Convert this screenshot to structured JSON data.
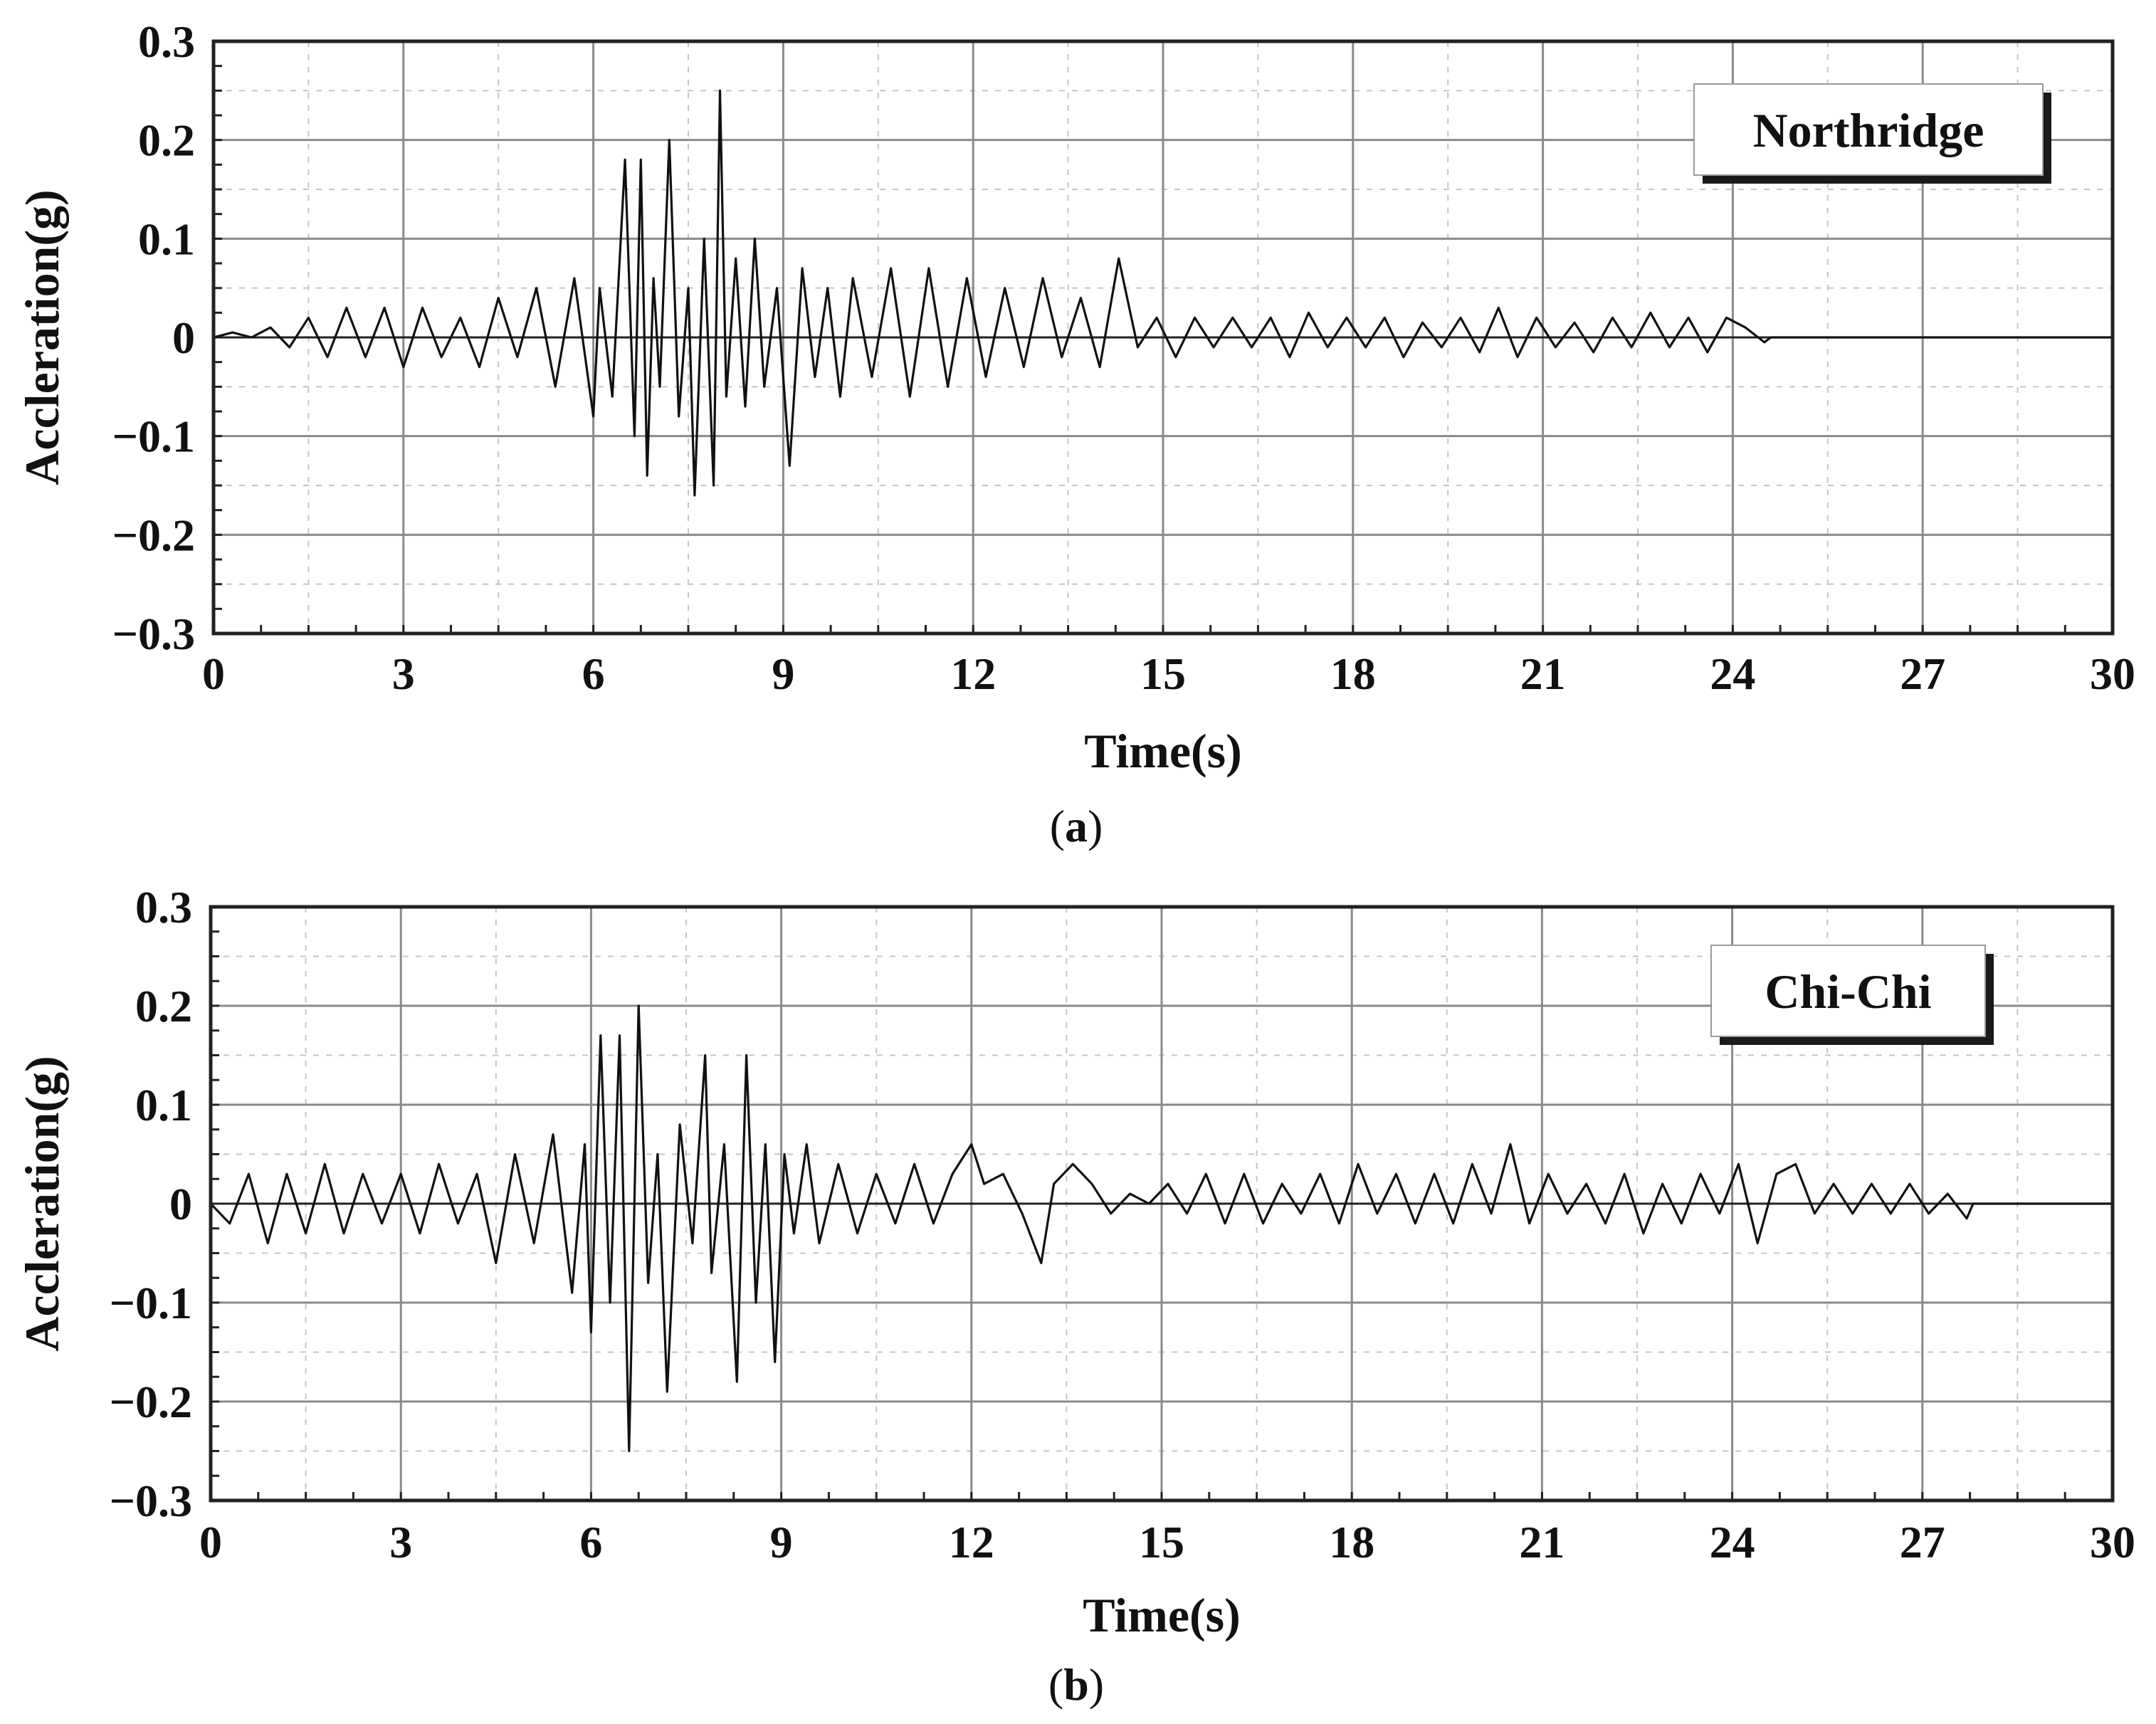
{
  "colors": {
    "trace": "#111111",
    "grid": "#8a8a8a",
    "frame": "#222222"
  },
  "chart_data": [
    {
      "type": "line",
      "id": "a",
      "caption_letter": "a",
      "xlabel": "Time(s)",
      "ylabel": "Accleration(g)",
      "xlim": [
        0,
        30
      ],
      "ylim": [
        -0.3,
        0.3
      ],
      "xticks": [
        0,
        3,
        6,
        9,
        12,
        15,
        18,
        21,
        24,
        27,
        30
      ],
      "yticks": [
        0.3,
        0.2,
        0.1,
        0,
        -0.1,
        -0.2,
        -0.3
      ],
      "ytick_labels": [
        "0.3",
        "0.2",
        "0.1",
        "0",
        "−0.1",
        "−0.2",
        "−0.3"
      ],
      "grid": true,
      "legend_position": "top-right",
      "series": [
        {
          "name": "Northridge",
          "x": [
            0,
            0.3,
            0.6,
            0.9,
            1.2,
            1.5,
            1.8,
            2.1,
            2.4,
            2.7,
            3.0,
            3.3,
            3.6,
            3.9,
            4.2,
            4.5,
            4.8,
            5.1,
            5.4,
            5.7,
            6.0,
            6.1,
            6.3,
            6.5,
            6.65,
            6.75,
            6.85,
            6.95,
            7.05,
            7.2,
            7.35,
            7.5,
            7.6,
            7.75,
            7.9,
            8.0,
            8.1,
            8.25,
            8.4,
            8.55,
            8.7,
            8.9,
            9.1,
            9.3,
            9.5,
            9.7,
            9.9,
            10.1,
            10.4,
            10.7,
            11.0,
            11.3,
            11.6,
            11.9,
            12.2,
            12.5,
            12.8,
            13.1,
            13.4,
            13.7,
            14.0,
            14.3,
            14.6,
            14.9,
            15.2,
            15.5,
            15.8,
            16.1,
            16.4,
            16.7,
            17.0,
            17.3,
            17.6,
            17.9,
            18.2,
            18.5,
            18.8,
            19.1,
            19.4,
            19.7,
            20.0,
            20.3,
            20.6,
            20.9,
            21.2,
            21.5,
            21.8,
            22.1,
            22.4,
            22.7,
            23.0,
            23.3,
            23.6,
            23.9,
            24.2,
            24.5,
            24.6,
            25,
            27,
            30
          ],
          "y": [
            0,
            0.005,
            0,
            0.01,
            -0.01,
            0.02,
            -0.02,
            0.03,
            -0.02,
            0.03,
            -0.03,
            0.03,
            -0.02,
            0.02,
            -0.03,
            0.04,
            -0.02,
            0.05,
            -0.05,
            0.06,
            -0.08,
            0.05,
            -0.06,
            0.18,
            -0.1,
            0.18,
            -0.14,
            0.06,
            -0.05,
            0.2,
            -0.08,
            0.05,
            -0.16,
            0.1,
            -0.15,
            0.25,
            -0.06,
            0.08,
            -0.07,
            0.1,
            -0.05,
            0.05,
            -0.13,
            0.07,
            -0.04,
            0.05,
            -0.06,
            0.06,
            -0.04,
            0.07,
            -0.06,
            0.07,
            -0.05,
            0.06,
            -0.04,
            0.05,
            -0.03,
            0.06,
            -0.02,
            0.04,
            -0.03,
            0.08,
            -0.01,
            0.02,
            -0.02,
            0.02,
            -0.01,
            0.02,
            -0.01,
            0.02,
            -0.02,
            0.025,
            -0.01,
            0.02,
            -0.01,
            0.02,
            -0.02,
            0.015,
            -0.01,
            0.02,
            -0.015,
            0.03,
            -0.02,
            0.02,
            -0.01,
            0.015,
            -0.015,
            0.02,
            -0.01,
            0.025,
            -0.01,
            0.02,
            -0.015,
            0.02,
            0.01,
            -0.005,
            0,
            0,
            0,
            0
          ]
        }
      ]
    },
    {
      "type": "line",
      "id": "b",
      "caption_letter": "b",
      "xlabel": "Time(s)",
      "ylabel": "Accleration(g)",
      "xlim": [
        0,
        30
      ],
      "ylim": [
        -0.3,
        0.3
      ],
      "xticks": [
        0,
        3,
        6,
        9,
        12,
        15,
        18,
        21,
        24,
        27,
        30
      ],
      "yticks": [
        0.3,
        0.2,
        0.1,
        0,
        -0.1,
        -0.2,
        -0.3
      ],
      "ytick_labels": [
        "0.3",
        "0.2",
        "0.1",
        "0",
        "−0.1",
        "−0.2",
        "−0.3"
      ],
      "grid": true,
      "legend_position": "top-right",
      "series": [
        {
          "name": "Chi-Chi",
          "x": [
            0,
            0.3,
            0.6,
            0.9,
            1.2,
            1.5,
            1.8,
            2.1,
            2.4,
            2.7,
            3.0,
            3.3,
            3.6,
            3.9,
            4.2,
            4.5,
            4.8,
            5.1,
            5.4,
            5.7,
            5.9,
            6.0,
            6.15,
            6.3,
            6.45,
            6.6,
            6.75,
            6.9,
            7.05,
            7.2,
            7.4,
            7.6,
            7.8,
            7.9,
            8.1,
            8.3,
            8.45,
            8.6,
            8.75,
            8.9,
            9.05,
            9.2,
            9.4,
            9.6,
            9.9,
            10.2,
            10.5,
            10.8,
            11.1,
            11.4,
            11.7,
            12.0,
            12.2,
            12.5,
            12.8,
            13.1,
            13.3,
            13.6,
            13.9,
            14.2,
            14.5,
            14.8,
            15.1,
            15.4,
            15.7,
            16.0,
            16.3,
            16.6,
            16.9,
            17.2,
            17.5,
            17.8,
            18.1,
            18.4,
            18.7,
            19.0,
            19.3,
            19.6,
            19.9,
            20.2,
            20.5,
            20.8,
            21.1,
            21.4,
            21.7,
            22.0,
            22.3,
            22.6,
            22.9,
            23.2,
            23.5,
            23.8,
            24.1,
            24.4,
            24.7,
            25.0,
            25.3,
            25.6,
            25.9,
            26.2,
            26.5,
            26.8,
            27.1,
            27.4,
            27.7,
            27.8,
            28,
            30
          ],
          "y": [
            0,
            -0.02,
            0.03,
            -0.04,
            0.03,
            -0.03,
            0.04,
            -0.03,
            0.03,
            -0.02,
            0.03,
            -0.03,
            0.04,
            -0.02,
            0.03,
            -0.06,
            0.05,
            -0.04,
            0.07,
            -0.09,
            0.06,
            -0.13,
            0.17,
            -0.1,
            0.17,
            -0.25,
            0.2,
            -0.08,
            0.05,
            -0.19,
            0.08,
            -0.04,
            0.15,
            -0.07,
            0.06,
            -0.18,
            0.15,
            -0.1,
            0.06,
            -0.16,
            0.05,
            -0.03,
            0.06,
            -0.04,
            0.04,
            -0.03,
            0.03,
            -0.02,
            0.04,
            -0.02,
            0.03,
            0.06,
            0.02,
            0.03,
            -0.01,
            -0.06,
            0.02,
            0.04,
            0.02,
            -0.01,
            0.01,
            0,
            0.02,
            -0.01,
            0.03,
            -0.02,
            0.03,
            -0.02,
            0.02,
            -0.01,
            0.03,
            -0.02,
            0.04,
            -0.01,
            0.03,
            -0.02,
            0.03,
            -0.02,
            0.04,
            -0.01,
            0.06,
            -0.02,
            0.03,
            -0.01,
            0.02,
            -0.02,
            0.03,
            -0.03,
            0.02,
            -0.02,
            0.03,
            -0.01,
            0.04,
            -0.04,
            0.03,
            0.04,
            -0.01,
            0.02,
            -0.01,
            0.02,
            -0.01,
            0.02,
            -0.01,
            0.01,
            -0.015,
            0,
            0,
            0
          ]
        }
      ]
    }
  ]
}
